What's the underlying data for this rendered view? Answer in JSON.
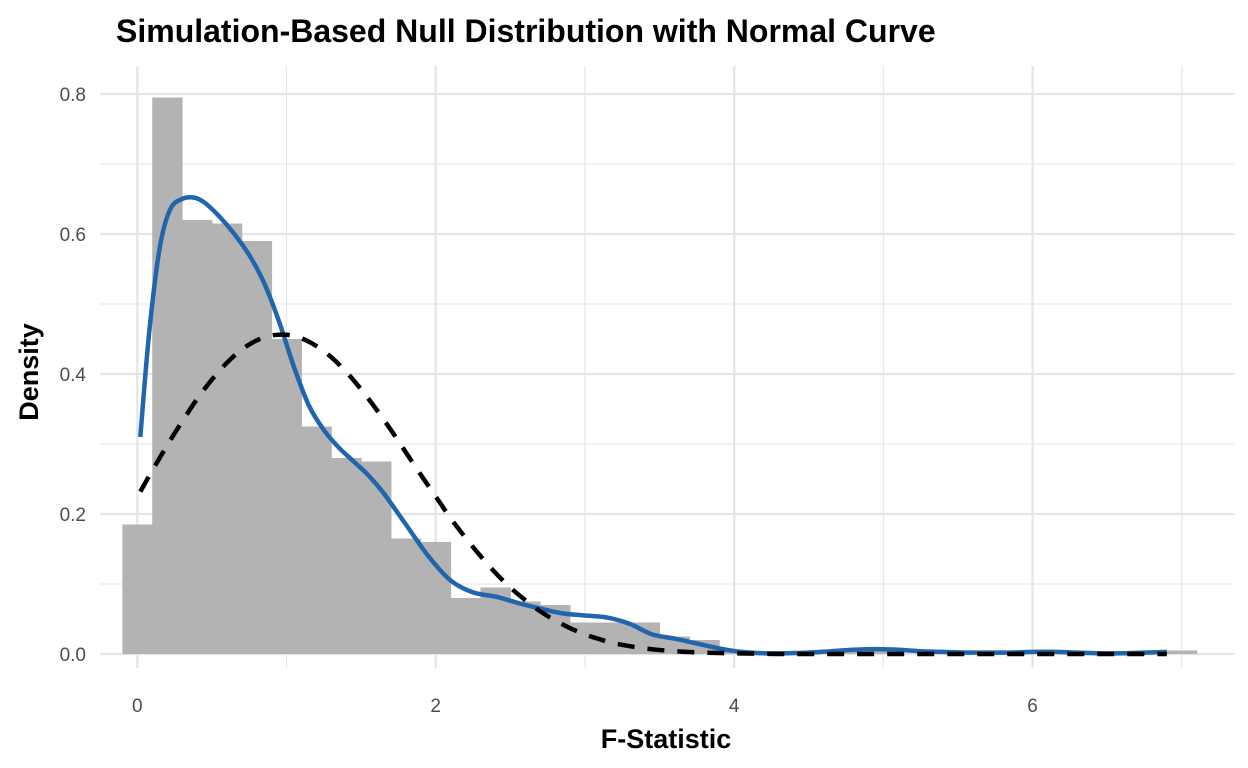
{
  "chart_data": {
    "type": "histogram",
    "title": "Simulation-Based Null Distribution with Normal Curve",
    "xlabel": "F-Statistic",
    "ylabel": "Density",
    "xlim": [
      -0.25,
      7.35
    ],
    "ylim": [
      -0.02,
      0.84
    ],
    "x_ticks": [
      0,
      2,
      4,
      6
    ],
    "x_minor_ticks": [
      1,
      3,
      5,
      7
    ],
    "y_ticks": [
      0.0,
      0.2,
      0.4,
      0.6,
      0.8
    ],
    "y_minor_ticks": [
      0.1,
      0.3,
      0.5,
      0.7
    ],
    "y_tick_labels": [
      "0.0",
      "0.2",
      "0.4",
      "0.6",
      "0.8"
    ],
    "grid": true,
    "colors": {
      "bars": "#b3b3b3",
      "density_curve": "#2166ac",
      "normal_curve": "#000000",
      "grid": "#e5e5e5"
    },
    "histogram": {
      "bin_width": 0.2,
      "bins": [
        {
          "x0": -0.1,
          "x1": 0.1,
          "density": 0.185
        },
        {
          "x0": 0.1,
          "x1": 0.3,
          "density": 0.795
        },
        {
          "x0": 0.3,
          "x1": 0.5,
          "density": 0.62
        },
        {
          "x0": 0.5,
          "x1": 0.7,
          "density": 0.615
        },
        {
          "x0": 0.7,
          "x1": 0.9,
          "density": 0.59
        },
        {
          "x0": 0.9,
          "x1": 1.1,
          "density": 0.45
        },
        {
          "x0": 1.1,
          "x1": 1.3,
          "density": 0.325
        },
        {
          "x0": 1.3,
          "x1": 1.5,
          "density": 0.28
        },
        {
          "x0": 1.5,
          "x1": 1.7,
          "density": 0.275
        },
        {
          "x0": 1.7,
          "x1": 1.9,
          "density": 0.165
        },
        {
          "x0": 1.9,
          "x1": 2.1,
          "density": 0.16
        },
        {
          "x0": 2.1,
          "x1": 2.3,
          "density": 0.08
        },
        {
          "x0": 2.3,
          "x1": 2.5,
          "density": 0.095
        },
        {
          "x0": 2.5,
          "x1": 2.7,
          "density": 0.075
        },
        {
          "x0": 2.7,
          "x1": 2.9,
          "density": 0.07
        },
        {
          "x0": 2.9,
          "x1": 3.1,
          "density": 0.045
        },
        {
          "x0": 3.1,
          "x1": 3.3,
          "density": 0.045
        },
        {
          "x0": 3.3,
          "x1": 3.5,
          "density": 0.045
        },
        {
          "x0": 3.5,
          "x1": 3.7,
          "density": 0.025
        },
        {
          "x0": 3.7,
          "x1": 3.9,
          "density": 0.02
        },
        {
          "x0": 3.9,
          "x1": 4.1,
          "density": 0.005
        },
        {
          "x0": 4.1,
          "x1": 4.3,
          "density": 0.0
        },
        {
          "x0": 4.3,
          "x1": 4.5,
          "density": 0.0
        },
        {
          "x0": 4.5,
          "x1": 4.7,
          "density": 0.0
        },
        {
          "x0": 4.7,
          "x1": 4.9,
          "density": 0.005
        },
        {
          "x0": 4.9,
          "x1": 5.1,
          "density": 0.005
        },
        {
          "x0": 5.1,
          "x1": 5.3,
          "density": 0.0
        },
        {
          "x0": 5.3,
          "x1": 5.5,
          "density": 0.0
        },
        {
          "x0": 5.5,
          "x1": 5.7,
          "density": 0.0
        },
        {
          "x0": 5.7,
          "x1": 5.9,
          "density": 0.0
        },
        {
          "x0": 5.9,
          "x1": 6.1,
          "density": 0.0
        },
        {
          "x0": 6.1,
          "x1": 6.3,
          "density": 0.0
        },
        {
          "x0": 6.3,
          "x1": 6.5,
          "density": 0.0
        },
        {
          "x0": 6.5,
          "x1": 6.7,
          "density": 0.0
        },
        {
          "x0": 6.7,
          "x1": 6.9,
          "density": 0.0
        },
        {
          "x0": 6.9,
          "x1": 7.1,
          "density": 0.005
        }
      ]
    },
    "series": [
      {
        "style": "solid",
        "x": [
          0.02,
          0.08,
          0.15,
          0.22,
          0.3,
          0.38,
          0.45,
          0.55,
          0.65,
          0.75,
          0.85,
          0.95,
          1.05,
          1.15,
          1.25,
          1.35,
          1.45,
          1.55,
          1.65,
          1.8,
          1.95,
          2.1,
          2.25,
          2.4,
          2.55,
          2.7,
          2.85,
          3.0,
          3.15,
          3.3,
          3.45,
          3.6,
          3.75,
          3.9,
          4.05,
          4.2,
          4.35,
          4.5,
          4.65,
          4.8,
          4.95,
          5.1,
          5.25,
          5.4,
          5.55,
          5.7,
          5.85,
          6.0,
          6.15,
          6.3,
          6.45,
          6.6,
          6.75,
          6.9
        ],
        "y": [
          0.31,
          0.46,
          0.58,
          0.635,
          0.65,
          0.652,
          0.645,
          0.625,
          0.6,
          0.57,
          0.53,
          0.475,
          0.41,
          0.355,
          0.32,
          0.295,
          0.275,
          0.255,
          0.23,
          0.185,
          0.14,
          0.105,
          0.088,
          0.082,
          0.073,
          0.065,
          0.058,
          0.055,
          0.052,
          0.043,
          0.028,
          0.022,
          0.015,
          0.008,
          0.003,
          0.001,
          0.001,
          0.002,
          0.004,
          0.006,
          0.007,
          0.006,
          0.004,
          0.003,
          0.002,
          0.002,
          0.002,
          0.003,
          0.003,
          0.002,
          0.001,
          0.001,
          0.002,
          0.003
        ]
      },
      {
        "style": "dashed",
        "x": [
          0.02,
          0.1,
          0.2,
          0.3,
          0.4,
          0.5,
          0.6,
          0.7,
          0.8,
          0.9,
          1.0,
          1.1,
          1.2,
          1.3,
          1.4,
          1.5,
          1.6,
          1.7,
          1.8,
          1.9,
          2.0,
          2.1,
          2.2,
          2.3,
          2.4,
          2.5,
          2.6,
          2.7,
          2.8,
          2.9,
          3.0,
          3.1,
          3.2,
          3.4,
          3.6,
          3.8,
          4.0,
          4.3,
          4.6,
          5.0,
          5.5,
          6.0,
          6.5,
          6.9
        ],
        "y": [
          0.232,
          0.262,
          0.298,
          0.332,
          0.364,
          0.392,
          0.416,
          0.435,
          0.448,
          0.455,
          0.456,
          0.451,
          0.44,
          0.424,
          0.403,
          0.378,
          0.35,
          0.32,
          0.288,
          0.256,
          0.225,
          0.194,
          0.166,
          0.14,
          0.116,
          0.095,
          0.077,
          0.061,
          0.048,
          0.037,
          0.028,
          0.021,
          0.015,
          0.008,
          0.004,
          0.002,
          0.001,
          0.0,
          0.0,
          0.0,
          0.0,
          0.0,
          0.0,
          0.0
        ]
      }
    ]
  }
}
